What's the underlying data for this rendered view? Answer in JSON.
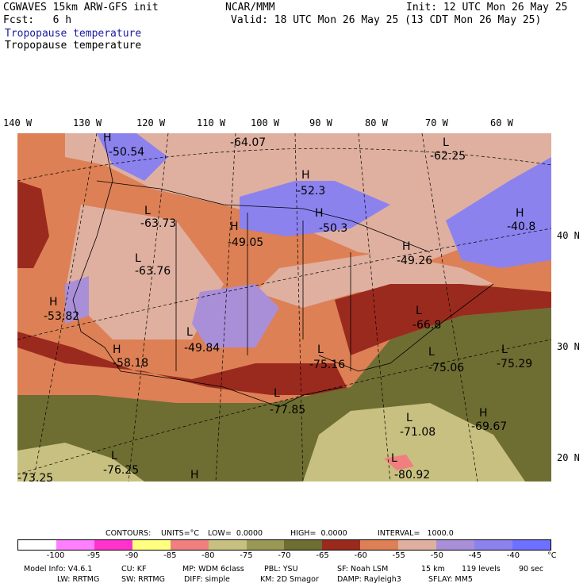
{
  "header": {
    "title": "CGWAVES 15km ARW-GFS init",
    "fcst": "Fcst:   6 h",
    "org": "NCAR/MMM",
    "init": "Init: 12 UTC Mon 26 May 25",
    "valid": "Valid: 18 UTC Mon 26 May 25 (13 CDT Mon 26 May 25)",
    "field_blue": "Tropopause temperature",
    "field_black": "Tropopause temperature"
  },
  "longitude_labels": [
    "140 W",
    "130 W",
    "120 W",
    "110 W",
    "100 W",
    "90 W",
    "80 W",
    "70 W",
    "60 W"
  ],
  "latitude_labels": [
    "40 N",
    "30 N",
    "20 N"
  ],
  "map_labels": [
    {
      "type": "H",
      "value": "-50.54"
    },
    {
      "type": "",
      "value": "-64.07"
    },
    {
      "type": "L",
      "value": "-62.25"
    },
    {
      "type": "H",
      "value": "-52.3"
    },
    {
      "type": "H",
      "value": "-40.8"
    },
    {
      "type": "L",
      "value": "-63.73"
    },
    {
      "type": "H",
      "value": "-49.05"
    },
    {
      "type": "H",
      "value": "-50.3"
    },
    {
      "type": "H",
      "value": "-49.26"
    },
    {
      "type": "L",
      "value": "-63.76"
    },
    {
      "type": "H",
      "value": "-53.82"
    },
    {
      "type": "L",
      "value": "-66.8"
    },
    {
      "type": "L",
      "value": "-49.84"
    },
    {
      "type": "H",
      "value": "-58.18"
    },
    {
      "type": "L",
      "value": "-75.16"
    },
    {
      "type": "L",
      "value": "-75.06"
    },
    {
      "type": "L",
      "value": "-75.29"
    },
    {
      "type": "L",
      "value": "-77.85"
    },
    {
      "type": "H",
      "value": "-69.67"
    },
    {
      "type": "L",
      "value": "-71.08"
    },
    {
      "type": "L",
      "value": "-76.25"
    },
    {
      "type": "L",
      "value": "-80.92"
    },
    {
      "type": "H",
      "value": ""
    },
    {
      "type": "",
      "value": "-73.25"
    }
  ],
  "contours": {
    "label": "CONTOURS:",
    "units": "UNITS=°C",
    "low": "LOW=  0.0000",
    "high": "HIGH=  0.0000",
    "interval": "INTERVAL=   1000.0"
  },
  "colorbar": {
    "colors": [
      "#ffffff",
      "#ff80ff",
      "#ff33cc",
      "#ffff80",
      "#f08080",
      "#c8c080",
      "#999955",
      "#6e6e32",
      "#9b2a1e",
      "#dd8055",
      "#dfb0a0",
      "#a98fd8",
      "#8c82ee",
      "#6e70ff"
    ],
    "ticks": [
      "-100",
      "-95",
      "-90",
      "-85",
      "-80",
      "-75",
      "-70",
      "-65",
      "-60",
      "-55",
      "-50",
      "-45",
      "-40"
    ],
    "unit": "°C"
  },
  "model_info": {
    "line1": [
      "Model Info: V4.6.1",
      "CU: KF",
      "MP: WDM 6class",
      "PBL: YSU",
      "SF: Noah LSM",
      "15 km",
      "119 levels",
      "90 sec"
    ],
    "line2": [
      "LW: RRTMG",
      "SW: RRTMG",
      "DIFF: simple",
      "KM: 2D Smagor",
      "DAMP: Rayleigh3",
      "SFLAY: MM5"
    ]
  }
}
